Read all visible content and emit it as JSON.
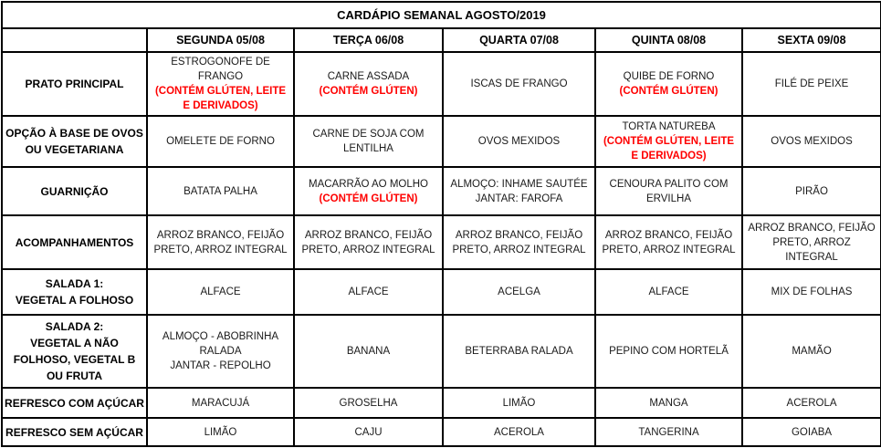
{
  "title": "CARDÁPIO SEMANAL AGOSTO/2019",
  "columns": [
    "SEGUNDA 05/08",
    "TERÇA 06/08",
    "QUARTA 07/08",
    "QUINTA 08/08",
    "SEXTA 09/08"
  ],
  "rows": [
    {
      "label": "PRATO PRINCIPAL",
      "cells": [
        {
          "text": "ESTROGONOFE DE FRANGO",
          "allergen": "(CONTÉM GLÚTEN, LEITE E DERIVADOS)"
        },
        {
          "text": "CARNE ASSADA",
          "allergen": "(CONTÉM GLÚTEN)"
        },
        {
          "text": "ISCAS DE FRANGO"
        },
        {
          "text": "QUIBE DE FORNO",
          "allergen": "(CONTÉM GLÚTEN)"
        },
        {
          "text": "FILÉ DE PEIXE"
        }
      ]
    },
    {
      "label": "OPÇÃO À BASE DE OVOS\nOU VEGETARIANA",
      "cells": [
        {
          "text": "OMELETE DE FORNO"
        },
        {
          "text": "CARNE DE SOJA COM LENTILHA"
        },
        {
          "text": "OVOS MEXIDOS"
        },
        {
          "text": "TORTA NATUREBA",
          "allergen": "(CONTÉM GLÚTEN, LEITE E DERIVADOS)"
        },
        {
          "text": "OVOS MEXIDOS"
        }
      ]
    },
    {
      "label": "GUARNIÇÃO",
      "cells": [
        {
          "text": "BATATA PALHA"
        },
        {
          "text": "MACARRÃO AO MOLHO",
          "allergen": "(CONTÉM GLÚTEN)"
        },
        {
          "text": "ALMOÇO: INHAME SAUTÉE\nJANTAR: FAROFA"
        },
        {
          "text": "CENOURA PALITO COM ERVILHA"
        },
        {
          "text": "PIRÃO"
        }
      ]
    },
    {
      "label": "ACOMPANHAMENTOS",
      "cells": [
        {
          "text": "ARROZ BRANCO, FEIJÃO PRETO, ARROZ INTEGRAL"
        },
        {
          "text": "ARROZ BRANCO, FEIJÃO PRETO, ARROZ INTEGRAL"
        },
        {
          "text": "ARROZ BRANCO, FEIJÃO PRETO, ARROZ INTEGRAL"
        },
        {
          "text": "ARROZ BRANCO, FEIJÃO PRETO, ARROZ INTEGRAL"
        },
        {
          "text": "ARROZ BRANCO, FEIJÃO PRETO, ARROZ INTEGRAL"
        }
      ]
    },
    {
      "label": "SALADA 1:\nVEGETAL A FOLHOSO",
      "cells": [
        {
          "text": "ALFACE"
        },
        {
          "text": "ALFACE"
        },
        {
          "text": "ACELGA"
        },
        {
          "text": "ALFACE"
        },
        {
          "text": "MIX DE FOLHAS"
        }
      ]
    },
    {
      "label": "SALADA 2:\nVEGETAL A NÃO\nFOLHOSO, VEGETAL B\nOU FRUTA",
      "cells": [
        {
          "text": "ALMOÇO - ABOBRINHA RALADA\nJANTAR - REPOLHO"
        },
        {
          "text": "BANANA"
        },
        {
          "text": "BETERRABA RALADA"
        },
        {
          "text": "PEPINO COM HORTELÃ"
        },
        {
          "text": "MAMÃO"
        }
      ]
    },
    {
      "label": "REFRESCO COM AÇÚCAR",
      "cells": [
        {
          "text": "MARACUJÁ"
        },
        {
          "text": "GROSELHA"
        },
        {
          "text": "LIMÃO"
        },
        {
          "text": "MANGA"
        },
        {
          "text": "ACEROLA"
        }
      ]
    },
    {
      "label": "REFRESCO SEM AÇÚCAR",
      "cells": [
        {
          "text": "LIMÃO"
        },
        {
          "text": "CAJU"
        },
        {
          "text": "ACEROLA"
        },
        {
          "text": "TANGERINA"
        },
        {
          "text": "GOIABA"
        }
      ]
    }
  ],
  "colors": {
    "allergen_red": "#ff0000",
    "border": "#000000",
    "text": "#1a1a1a"
  }
}
